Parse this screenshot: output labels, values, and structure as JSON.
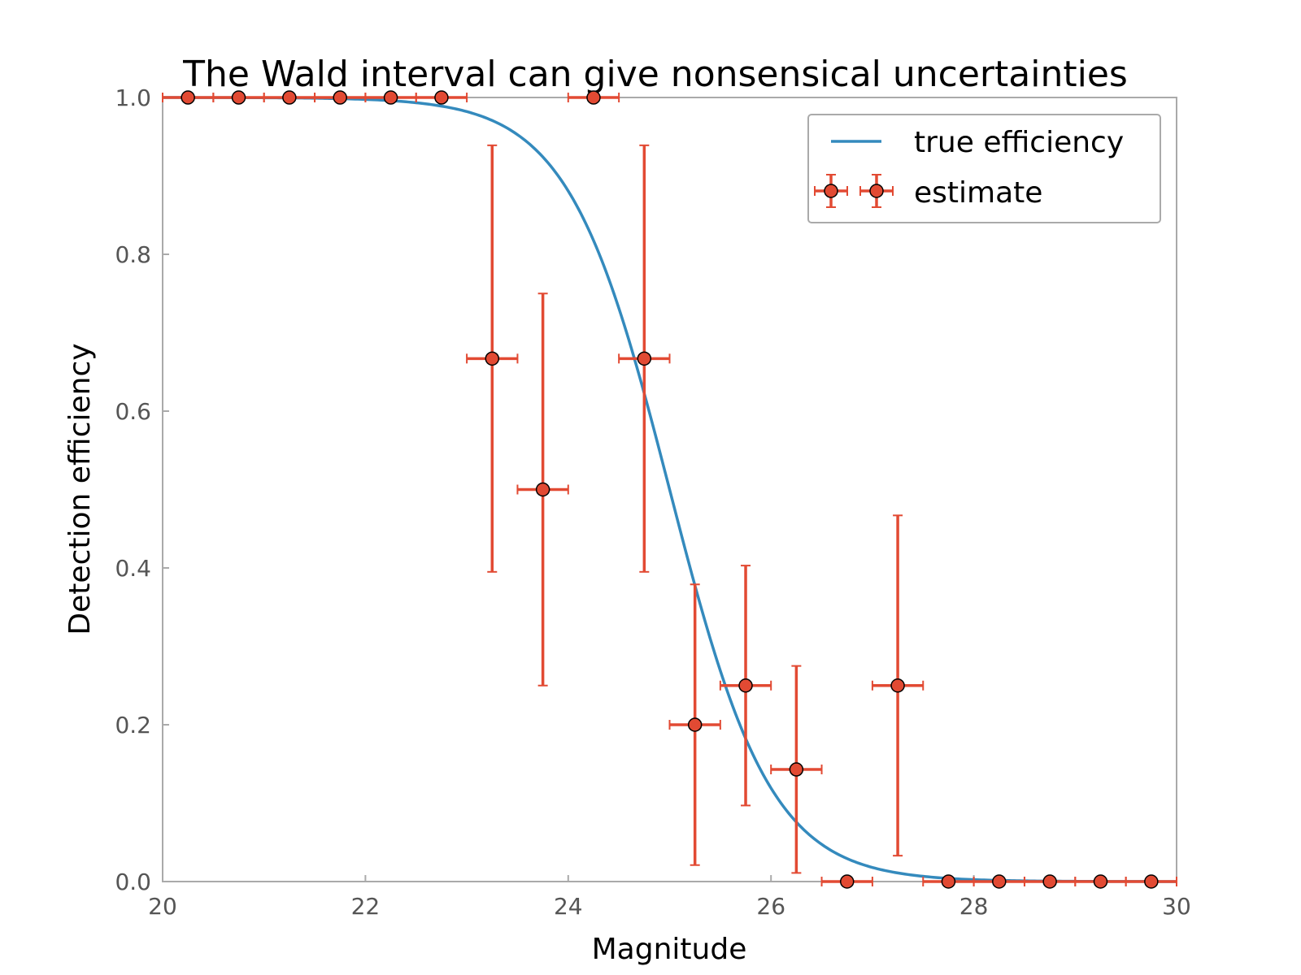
{
  "chart_data": {
    "type": "scatter",
    "title": "The Wald interval can give nonsensical uncertainties",
    "xlabel": "Magnitude",
    "ylabel": "Detection efficiency",
    "xlim": [
      20,
      30
    ],
    "ylim": [
      0,
      1
    ],
    "x_ticks": [
      20,
      22,
      24,
      26,
      28,
      30
    ],
    "x_tick_labels": [
      "20",
      "22",
      "24",
      "26",
      "28",
      "30"
    ],
    "y_ticks": [
      0,
      0.2,
      0.4,
      0.6,
      0.8,
      1.0
    ],
    "y_tick_labels": [
      "0.0",
      "0.2",
      "0.4",
      "0.6",
      "0.8",
      "1.0"
    ],
    "grid": false,
    "legend_position": "top-right",
    "curve": {
      "name": "true efficiency",
      "function": "logistic",
      "midpoint": 25.0,
      "scale": 0.5
    },
    "series": [
      {
        "name": "estimate",
        "x": [
          20.25,
          20.75,
          21.25,
          21.75,
          22.25,
          22.75,
          23.25,
          23.75,
          24.25,
          24.75,
          25.25,
          25.75,
          26.25,
          26.75,
          27.25,
          27.75,
          28.25,
          28.75,
          29.25,
          29.75
        ],
        "y": [
          1.0,
          1.0,
          1.0,
          1.0,
          1.0,
          1.0,
          0.667,
          0.5,
          1.0,
          0.667,
          0.2,
          0.25,
          0.143,
          0.0,
          0.25,
          0.0,
          0.0,
          0.0,
          0.0,
          0.0
        ],
        "yerr": [
          0,
          0,
          0,
          0,
          0,
          0,
          0.272,
          0.25,
          0,
          0.272,
          0.179,
          0.153,
          0.132,
          0,
          0.217,
          0,
          0,
          0,
          0,
          0
        ],
        "xerr": 0.25
      }
    ],
    "colors": {
      "curve": "#348abd",
      "estimate": "#e24a33",
      "frame": "#aaaaaa"
    }
  }
}
